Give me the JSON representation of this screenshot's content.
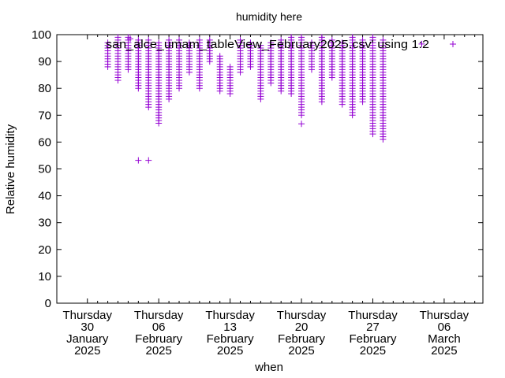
{
  "chart_data": {
    "type": "scatter",
    "title": "humidity here",
    "xlabel": "when",
    "ylabel": "Relative humidity",
    "ylim": [
      0,
      100
    ],
    "yticks": [
      0,
      10,
      20,
      30,
      40,
      50,
      60,
      70,
      80,
      90,
      100
    ],
    "xlim_day": [
      -3.0,
      38.8
    ],
    "xticks": [
      {
        "day": 0,
        "lines": [
          "Thursday",
          "30",
          "January",
          "2025"
        ]
      },
      {
        "day": 7,
        "lines": [
          "Thursday",
          "06",
          "February",
          "2025"
        ]
      },
      {
        "day": 14,
        "lines": [
          "Thursday",
          "13",
          "February",
          "2025"
        ]
      },
      {
        "day": 21,
        "lines": [
          "Thursday",
          "20",
          "February",
          "2025"
        ]
      },
      {
        "day": 28,
        "lines": [
          "Thursday",
          "27",
          "February",
          "2025"
        ]
      },
      {
        "day": 35,
        "lines": [
          "Thursday",
          "06",
          "March",
          "2025"
        ]
      }
    ],
    "grid": false,
    "legend_position": "top-right",
    "series": [
      {
        "name": "san_alce_umam_tableView_February2025.csv' using 1:2",
        "marker": "+",
        "color": "#9400d3",
        "columns": [
          {
            "day": 2.0,
            "min": 88,
            "max": 97
          },
          {
            "day": 3.0,
            "min": 83,
            "max": 99
          },
          {
            "day": 4.0,
            "min": 87,
            "max": 99
          },
          {
            "day": 5.0,
            "min": 80,
            "max": 98
          },
          {
            "day": 6.0,
            "min": 73,
            "max": 98
          },
          {
            "day": 7.0,
            "min": 67,
            "max": 97
          },
          {
            "day": 8.0,
            "min": 76,
            "max": 98
          },
          {
            "day": 9.0,
            "min": 80,
            "max": 98
          },
          {
            "day": 10.0,
            "min": 86,
            "max": 97
          },
          {
            "day": 11.0,
            "min": 80,
            "max": 98
          },
          {
            "day": 12.0,
            "min": 90,
            "max": 98
          },
          {
            "day": 13.0,
            "min": 79,
            "max": 92
          },
          {
            "day": 14.0,
            "min": 78,
            "max": 88
          },
          {
            "day": 15.0,
            "min": 86,
            "max": 98
          },
          {
            "day": 16.0,
            "min": 88,
            "max": 97
          },
          {
            "day": 17.0,
            "min": 76,
            "max": 96
          },
          {
            "day": 18.0,
            "min": 82,
            "max": 97
          },
          {
            "day": 19.0,
            "min": 79,
            "max": 98
          },
          {
            "day": 20.0,
            "min": 78,
            "max": 99
          },
          {
            "day": 21.0,
            "min": 70,
            "max": 99
          },
          {
            "day": 22.0,
            "min": 87,
            "max": 97
          },
          {
            "day": 23.0,
            "min": 75,
            "max": 99
          },
          {
            "day": 24.0,
            "min": 84,
            "max": 98
          },
          {
            "day": 25.0,
            "min": 74,
            "max": 97
          },
          {
            "day": 26.0,
            "min": 70,
            "max": 99
          },
          {
            "day": 27.0,
            "min": 75,
            "max": 98
          },
          {
            "day": 28.0,
            "min": 63,
            "max": 99
          },
          {
            "day": 29.0,
            "min": 61,
            "max": 98
          }
        ],
        "isolated_points": [
          {
            "day": 4.2,
            "value": 98.5
          },
          {
            "day": 21.0,
            "value": 66.8
          },
          {
            "day": 5.0,
            "value": 53.2
          },
          {
            "day": 6.0,
            "value": 53.2
          },
          {
            "day": 32.8,
            "value": 96.5
          }
        ]
      }
    ]
  }
}
